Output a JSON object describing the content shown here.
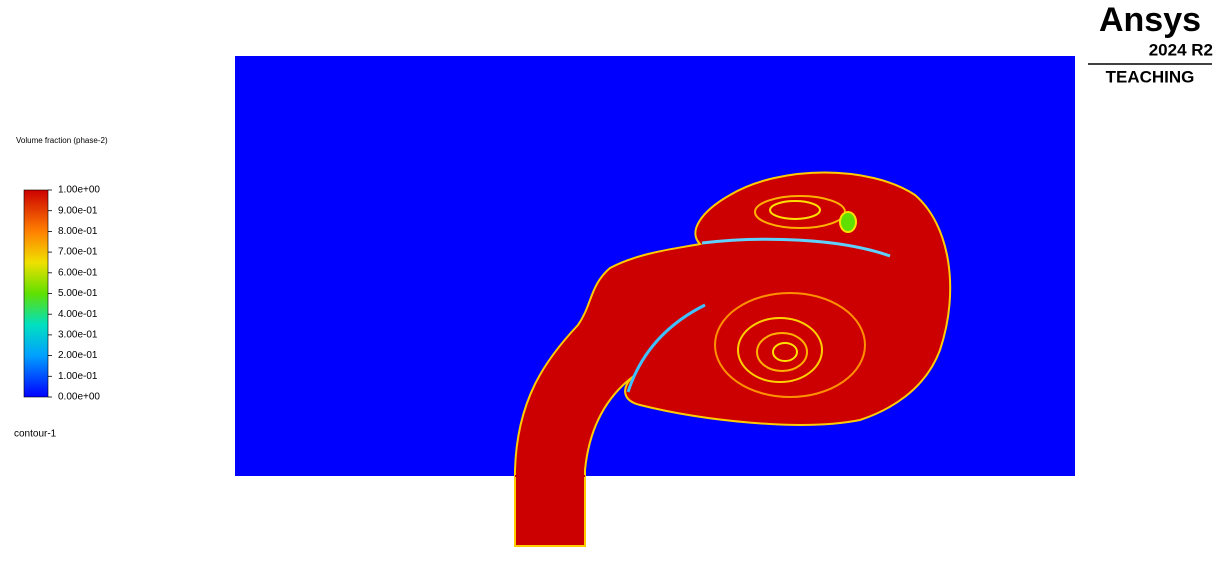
{
  "legend": {
    "title": "Volume fraction (phase-2)",
    "ticks": [
      "1.00e+00",
      "9.00e-01",
      "8.00e-01",
      "7.00e-01",
      "6.00e-01",
      "5.00e-01",
      "4.00e-01",
      "3.00e-01",
      "2.00e-01",
      "1.00e-01",
      "0.00e+00"
    ]
  },
  "contour_name": "contour-1",
  "logo": {
    "brand": "Ansys",
    "version": "2024 R2",
    "edition": "TEACHING"
  }
}
